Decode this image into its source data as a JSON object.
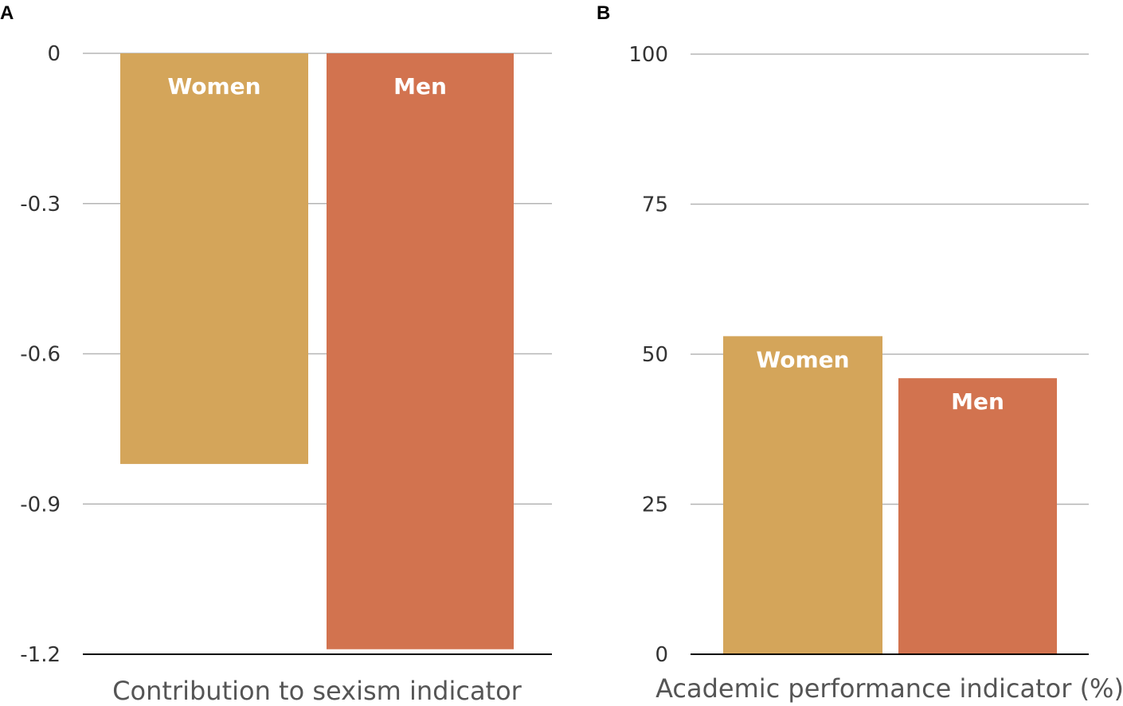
{
  "chart_data": [
    {
      "panel": "A",
      "type": "bar",
      "categories": [
        "Women",
        "Men"
      ],
      "values": [
        -0.82,
        -1.19
      ],
      "colors": [
        "#d4a55a",
        "#d2734f"
      ],
      "xlabel": "Contribution to sexism indicator",
      "ylabel": "",
      "ylim": [
        -1.2,
        0
      ],
      "yticks": [
        0,
        -0.3,
        -0.6,
        -0.9,
        -1.2
      ],
      "ytick_labels": [
        "0",
        "-0.3",
        "-0.6",
        "-0.9",
        "-1.2"
      ],
      "grid": true
    },
    {
      "panel": "B",
      "type": "bar",
      "categories": [
        "Women",
        "Men"
      ],
      "values": [
        53,
        46
      ],
      "colors": [
        "#d4a55a",
        "#d2734f"
      ],
      "xlabel": "Academic performance indicator (%)",
      "ylabel": "",
      "ylim": [
        0,
        100
      ],
      "yticks": [
        100,
        75,
        50,
        25,
        0
      ],
      "ytick_labels": [
        "100",
        "75",
        "50",
        "25",
        "0"
      ],
      "grid": true
    }
  ]
}
